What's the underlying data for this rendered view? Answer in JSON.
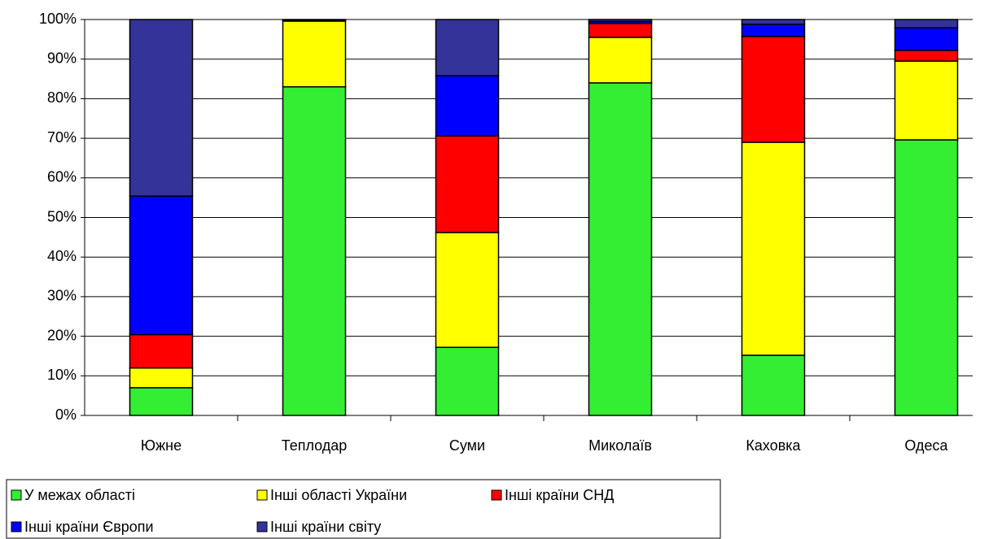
{
  "chart_data": {
    "type": "stacked_bar",
    "categories": [
      "Южне",
      "Теплодар",
      "Суми",
      "Миколаїв",
      "Каховка",
      "Одеса"
    ],
    "series": [
      {
        "name": "У межах області",
        "color": "#33ee33",
        "values": [
          7,
          83,
          17.2,
          84,
          15.2,
          69.6
        ]
      },
      {
        "name": "Інші області України",
        "color": "#ffff00",
        "values": [
          5,
          16.6,
          29,
          11.5,
          53.8,
          19.9
        ]
      },
      {
        "name": "Інші країни СНД",
        "color": "#ff0000",
        "values": [
          8.4,
          0.2,
          24.4,
          3.5,
          26.7,
          2.7
        ]
      },
      {
        "name": "Інші країни Європи",
        "color": "#0000ff",
        "values": [
          35,
          0.1,
          15.2,
          0.5,
          3.1,
          5.7
        ]
      },
      {
        "name": "Інші країни світу",
        "color": "#333399",
        "values": [
          44.6,
          0.1,
          14.2,
          0.5,
          1.2,
          2.1
        ]
      }
    ],
    "ylim": [
      0,
      100
    ],
    "yticks": [
      {
        "value": 0,
        "label": "0%"
      },
      {
        "value": 10,
        "label": "10%"
      },
      {
        "value": 20,
        "label": "20%"
      },
      {
        "value": 30,
        "label": "30%"
      },
      {
        "value": 40,
        "label": "40%"
      },
      {
        "value": 50,
        "label": "50%"
      },
      {
        "value": 60,
        "label": "60%"
      },
      {
        "value": 70,
        "label": "70%"
      },
      {
        "value": 80,
        "label": "80%"
      },
      {
        "value": 90,
        "label": "90%"
      },
      {
        "value": 100,
        "label": "100%"
      }
    ],
    "grid": true
  }
}
